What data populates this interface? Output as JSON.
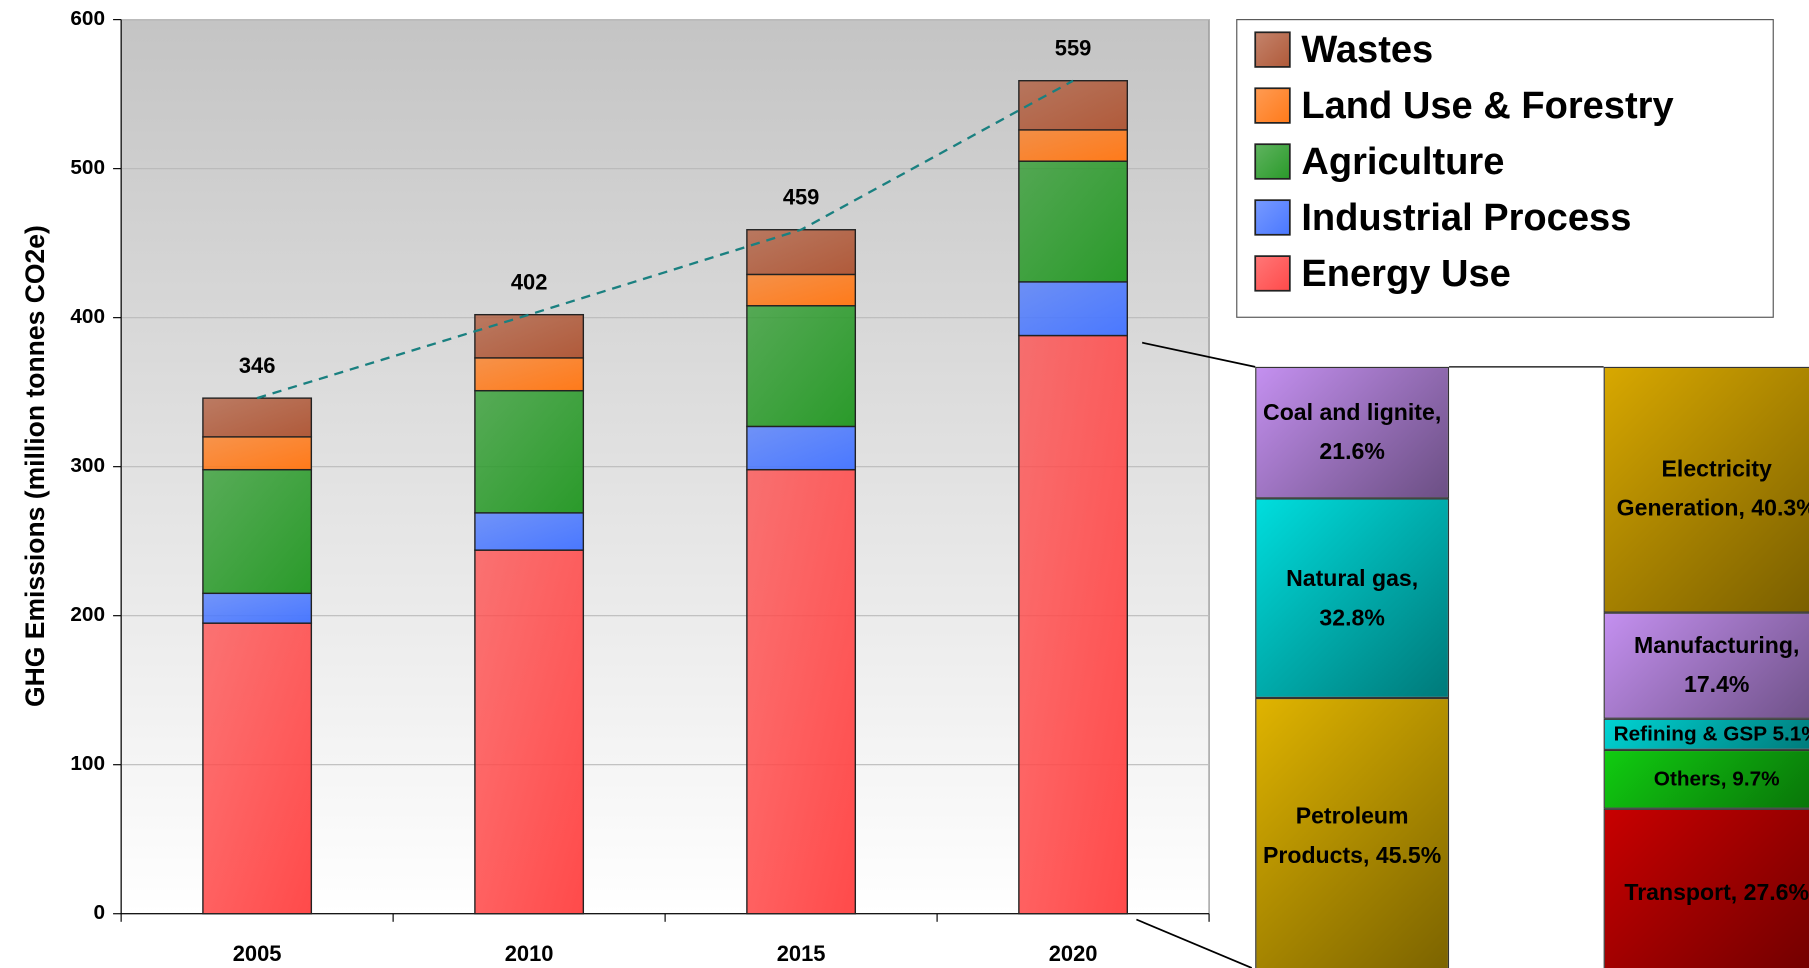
{
  "chart_data": {
    "type": "stacked_bar",
    "y_label": "GHG Emissions (million tonnes CO2e)",
    "categories": [
      "2005",
      "2010",
      "2015",
      "2020"
    ],
    "series": [
      {
        "name": "Energy Use",
        "color": "#ff4a4a",
        "values": [
          195,
          244,
          298,
          388
        ]
      },
      {
        "name": "Industrial Process",
        "color": "#4a78ff",
        "values": [
          20,
          25,
          29,
          36
        ]
      },
      {
        "name": "Agriculture",
        "color": "#2a9a2a",
        "values": [
          83,
          82,
          81,
          81
        ]
      },
      {
        "name": "Land Use & Forestry",
        "color": "#ff7a1a",
        "values": [
          22,
          22,
          21,
          21
        ]
      },
      {
        "name": "Wastes",
        "color": "#b05a3a",
        "values": [
          26,
          29,
          30,
          33
        ]
      }
    ],
    "totals": [
      346,
      402,
      459,
      559
    ],
    "ylim": [
      0,
      600
    ],
    "yticks": [
      0,
      100,
      200,
      300,
      400,
      500,
      600
    ],
    "grid": true,
    "trend_color": "#1a8080",
    "breakdowns": [
      {
        "segments": [
          {
            "label": "Coal and lignite, 21.6%",
            "value": 21.6,
            "color": "#c490f0"
          },
          {
            "label": "Natural gas, 32.8%",
            "value": 32.8,
            "color": "#00dede"
          },
          {
            "label": "Petroleum Products, 45.5%",
            "value": 45.5,
            "color": "#e0b400"
          }
        ]
      },
      {
        "segments": [
          {
            "label": "Electricity Generation, 40.3%",
            "value": 40.3,
            "color": "#d8a800"
          },
          {
            "label": "Manufacturing, 17.4%",
            "value": 17.4,
            "color": "#c490f0"
          },
          {
            "label": "Refining & GSP 5.1%",
            "value": 5.1,
            "color": "#00d4d4"
          },
          {
            "label": "Others, 9.7%",
            "value": 9.7,
            "color": "#10cc10"
          },
          {
            "label": "Transport, 27.6%",
            "value": 27.6,
            "color": "#c80000"
          }
        ]
      }
    ]
  }
}
